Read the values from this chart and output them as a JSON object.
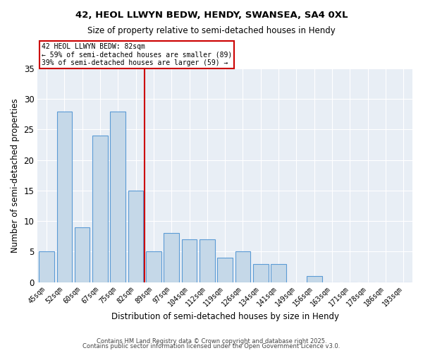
{
  "title1": "42, HEOL LLWYN BEDW, HENDY, SWANSEA, SA4 0XL",
  "title2": "Size of property relative to semi-detached houses in Hendy",
  "xlabel": "Distribution of semi-detached houses by size in Hendy",
  "ylabel": "Number of semi-detached properties",
  "categories": [
    "45sqm",
    "52sqm",
    "60sqm",
    "67sqm",
    "75sqm",
    "82sqm",
    "89sqm",
    "97sqm",
    "104sqm",
    "112sqm",
    "119sqm",
    "126sqm",
    "134sqm",
    "141sqm",
    "149sqm",
    "156sqm",
    "163sqm",
    "171sqm",
    "178sqm",
    "186sqm",
    "193sqm"
  ],
  "values": [
    5,
    28,
    9,
    24,
    28,
    15,
    5,
    8,
    7,
    7,
    4,
    5,
    3,
    3,
    0,
    1,
    0,
    0,
    0,
    0,
    0
  ],
  "bar_color": "#c5d8e8",
  "bar_edge_color": "#5b9bd5",
  "vline_x_index": 5,
  "vline_color": "#cc0000",
  "annotation_title": "42 HEOL LLWYN BEDW: 82sqm",
  "annotation_line1": "← 59% of semi-detached houses are smaller (89)",
  "annotation_line2": "39% of semi-detached houses are larger (59) →",
  "annotation_box_color": "#cc0000",
  "ylim": [
    0,
    35
  ],
  "yticks": [
    0,
    5,
    10,
    15,
    20,
    25,
    30,
    35
  ],
  "background_color": "#e8eef5",
  "footer1": "Contains HM Land Registry data © Crown copyright and database right 2025.",
  "footer2": "Contains public sector information licensed under the Open Government Licence v3.0."
}
